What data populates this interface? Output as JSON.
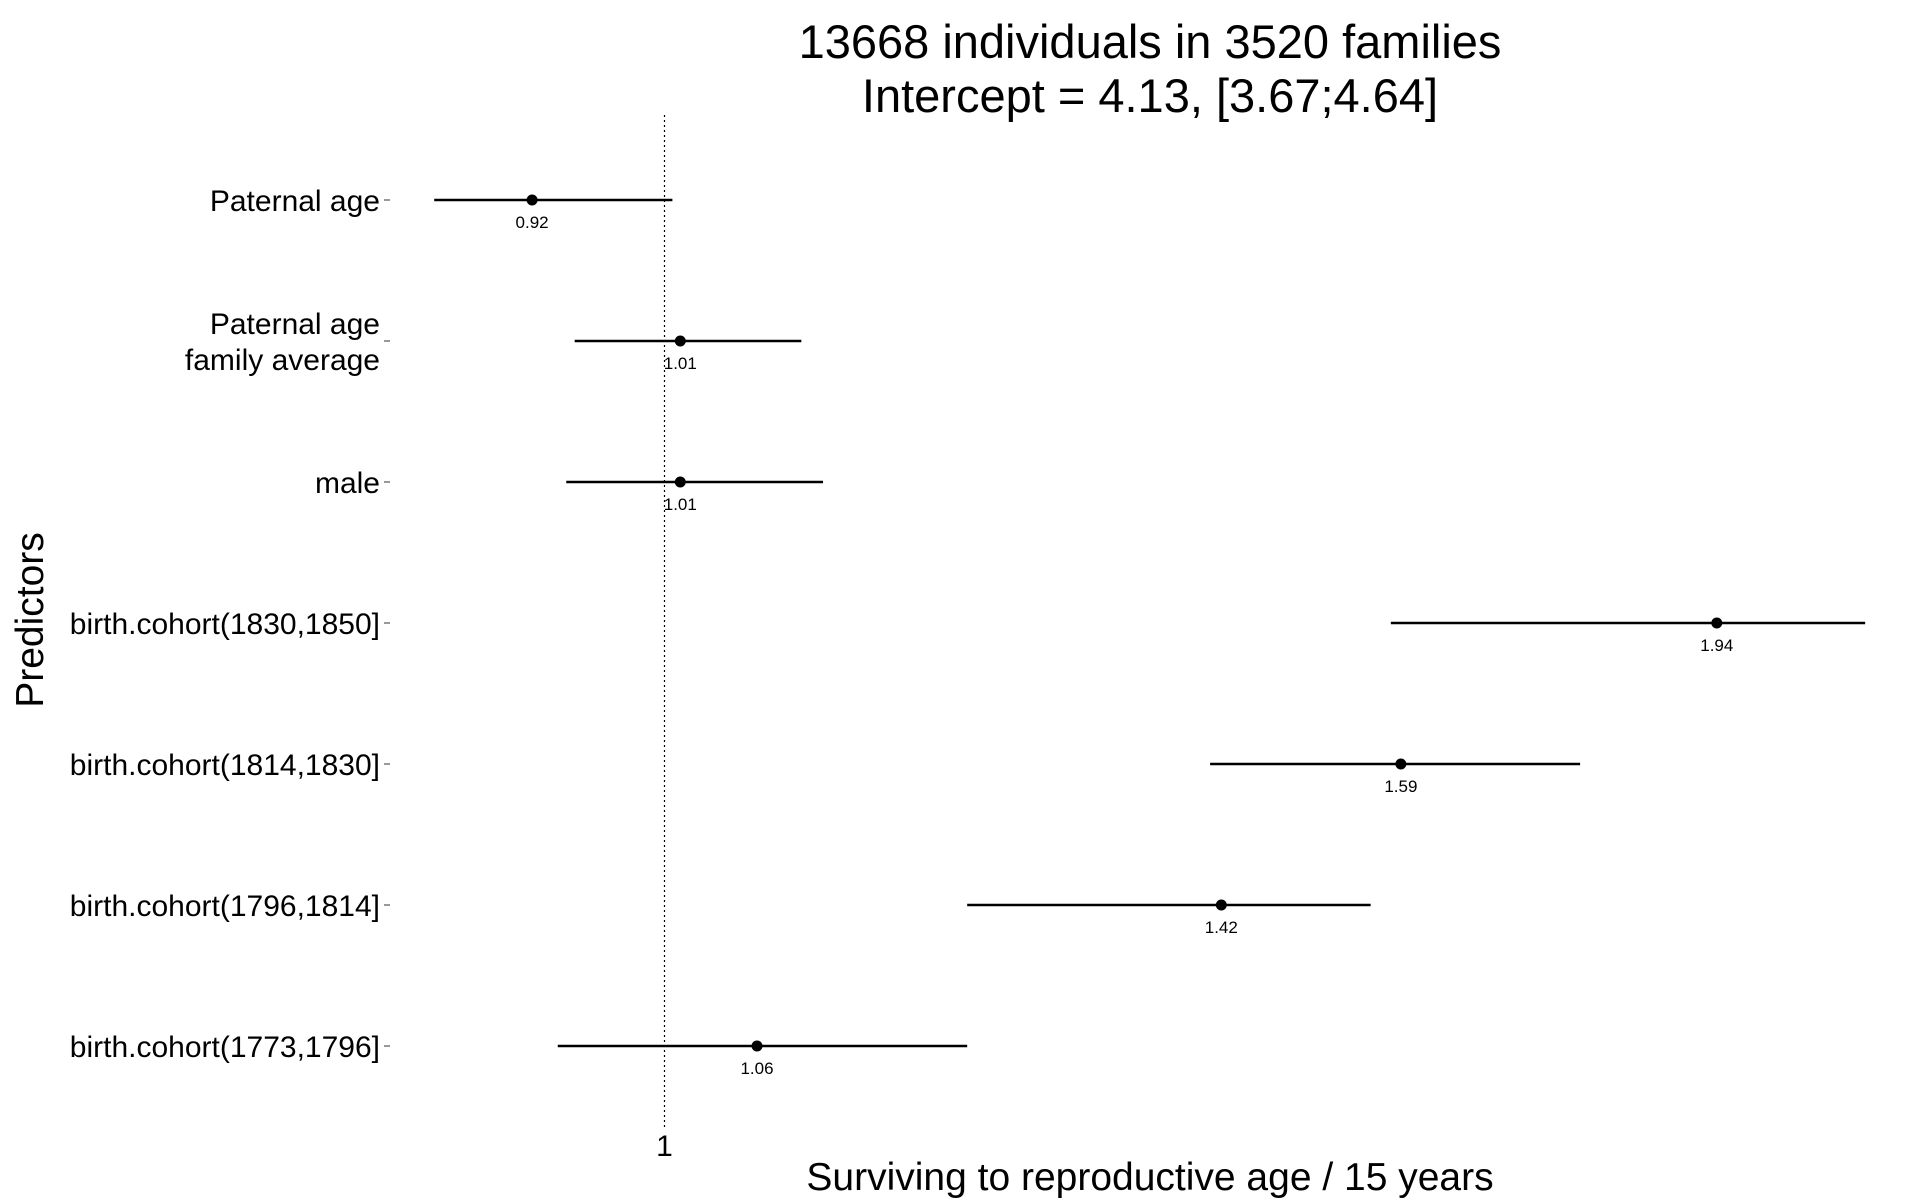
{
  "chart_data": {
    "type": "forest",
    "title": [
      "13668 individuals in 3520 families",
      "Intercept = 4.13, [3.67;4.64]"
    ],
    "xlabel": "Surviving to reproductive age / 15 years",
    "ylabel": "Predictors",
    "reference_line": 1,
    "x_ticks": [
      {
        "value": 1,
        "label": "1"
      }
    ],
    "x_scale": "log",
    "xlim": [
      0.86,
      2.15
    ],
    "grid": false,
    "legend": "none",
    "predictors": [
      {
        "label": [
          "Paternal age"
        ],
        "estimate": 0.92,
        "lower": 0.865,
        "upper": 1.005,
        "value_label": "0.92"
      },
      {
        "label": [
          "Paternal age",
          "family average"
        ],
        "estimate": 1.01,
        "lower": 0.945,
        "upper": 1.09,
        "value_label": "1.01"
      },
      {
        "label": [
          "male"
        ],
        "estimate": 1.01,
        "lower": 0.94,
        "upper": 1.105,
        "value_label": "1.01"
      },
      {
        "label": [
          "birth.cohort(1830,1850]"
        ],
        "estimate": 1.94,
        "lower": 1.58,
        "upper": 2.13,
        "value_label": "1.94"
      },
      {
        "label": [
          "birth.cohort(1814,1830]"
        ],
        "estimate": 1.59,
        "lower": 1.41,
        "upper": 1.78,
        "value_label": "1.59"
      },
      {
        "label": [
          "birth.cohort(1796,1814]"
        ],
        "estimate": 1.42,
        "lower": 1.21,
        "upper": 1.56,
        "value_label": "1.42"
      },
      {
        "label": [
          "birth.cohort(1773,1796]"
        ],
        "estimate": 1.06,
        "lower": 0.935,
        "upper": 1.21,
        "value_label": "1.06"
      }
    ]
  }
}
